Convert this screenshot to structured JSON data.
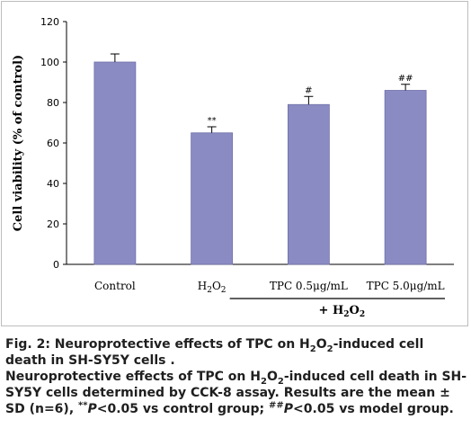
{
  "chart_data": {
    "type": "bar",
    "categories": [
      "Control",
      "H2O2",
      "TPC 0.5μg/mL",
      "TPC 5.0μg/mL"
    ],
    "values": [
      100,
      65,
      79,
      86
    ],
    "errors": [
      4,
      3,
      4,
      3
    ],
    "significance": [
      "",
      "**",
      "#",
      "##"
    ],
    "ylabel": "Cell viability (% of control)",
    "ylim": [
      0,
      120
    ],
    "yticks": [
      "0",
      "20",
      "40",
      "60",
      "80",
      "100",
      "120"
    ],
    "group_label": "+ H2O2",
    "bar_color": "#8b8bc4",
    "legend": "none"
  },
  "figure": {
    "caption_prefix": "Fig. 2: Neuroprotective effects of TPC on H",
    "caption_sub1": "2",
    "caption_mid1": "O",
    "caption_sub2": "2",
    "caption_end": "-induced cell death in SH-SY5Y cells .",
    "desc_1": "Neuroprotective effects of TPC on H",
    "desc_sub1": "2",
    "desc_2": "O",
    "desc_sub2": "2",
    "desc_3": "-induced cell death in SH-SY5Y cells determined by CCK-8 assay.  Results are the mean ± SD (n=6), ",
    "desc_sup1": "**",
    "desc_p1": "P",
    "desc_4": "<0.05 vs control group; ",
    "desc_sup2": "##",
    "desc_p2": "P",
    "desc_5": "<0.05 vs model group."
  }
}
